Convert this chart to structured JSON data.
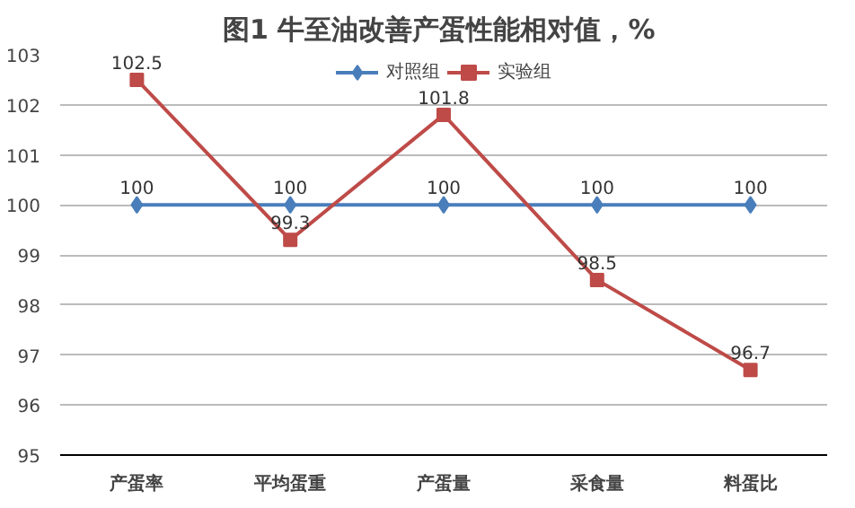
{
  "chart_data": {
    "type": "line",
    "title": "图1  牛至油改善产蛋性能相对值，%",
    "categories": [
      "产蛋率",
      "平均蛋重",
      "产蛋量",
      "采食量",
      "料蛋比"
    ],
    "series": [
      {
        "name": "对照组",
        "color": "#4a7ebb",
        "marker": "diamond",
        "values": [
          100,
          100,
          100,
          100,
          100
        ]
      },
      {
        "name": "实验组",
        "color": "#be4b48",
        "marker": "square",
        "values": [
          102.5,
          99.3,
          101.8,
          98.5,
          96.7
        ]
      }
    ],
    "ylim": [
      95,
      103
    ],
    "yticks": [
      95,
      96,
      97,
      98,
      99,
      100,
      101,
      102,
      103
    ],
    "grid": "y",
    "legend": "top",
    "data_labels": true
  }
}
